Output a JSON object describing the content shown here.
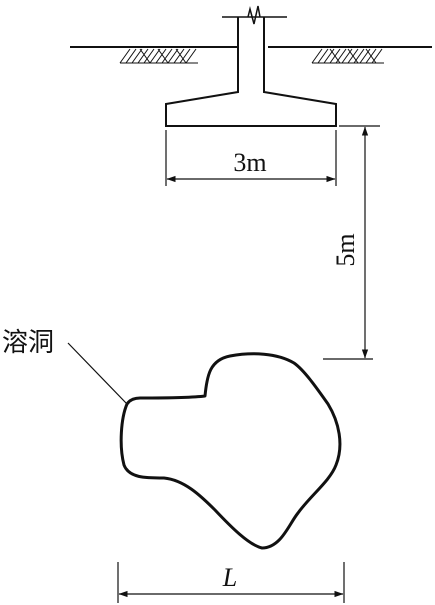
{
  "labels": {
    "width_dim": "3m",
    "depth_dim": "5m",
    "cave": "溶洞",
    "cave_span": "L"
  },
  "colors": {
    "stroke": "#111111",
    "background": "#ffffff"
  }
}
